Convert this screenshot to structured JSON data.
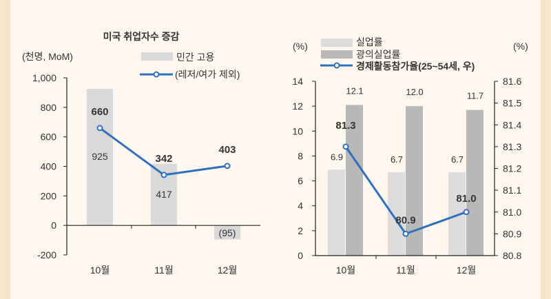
{
  "chart_data": [
    {
      "type": "bar+line",
      "title": "미국 취업자수 증감",
      "ylabel": "(천명, MoM)",
      "categories": [
        "10월",
        "11월",
        "12월"
      ],
      "ylim": [
        -200,
        1000
      ],
      "yticks": [
        -200,
        0,
        200,
        400,
        600,
        800,
        1000
      ],
      "ytick_labels": [
        "-200",
        "0",
        "200",
        "400",
        "600",
        "800",
        "1,000"
      ],
      "series": [
        {
          "name": "민간 고용",
          "kind": "bar",
          "color": "#d9d9d9",
          "values": [
            925,
            417,
            -95
          ],
          "labels": [
            "925",
            "417",
            "(95)"
          ]
        },
        {
          "name": "(레저/여가 제외)",
          "kind": "line",
          "color": "#2e6fbd",
          "values": [
            660,
            342,
            403
          ],
          "labels": [
            "660",
            "342",
            "403"
          ]
        }
      ],
      "legend": "top-right"
    },
    {
      "type": "bar+line",
      "ylabel_left": "(%)",
      "ylabel_right": "(%)",
      "categories": [
        "10월",
        "11월",
        "12월"
      ],
      "ylim": [
        0,
        14
      ],
      "yticks": [
        0,
        2,
        4,
        6,
        8,
        10,
        12,
        14
      ],
      "y2lim": [
        80.8,
        81.6
      ],
      "y2ticks": [
        "80.8",
        "80.9",
        "81.0",
        "81.1",
        "81.2",
        "81.3",
        "81.4",
        "81.5",
        "81.6"
      ],
      "series": [
        {
          "name": "실업률",
          "kind": "bar",
          "color": "#dcdcdc",
          "values": [
            6.9,
            6.7,
            6.7
          ],
          "labels": [
            "6.9",
            "6.7",
            "6.7"
          ]
        },
        {
          "name": "광의실업률",
          "kind": "bar",
          "color": "#b8b8b8",
          "values": [
            12.1,
            12.0,
            11.7
          ],
          "labels": [
            "12.1",
            "12.0",
            "11.7"
          ]
        },
        {
          "name": "경제활동참가율(25~54세, 우)",
          "kind": "line",
          "axis": "right",
          "color": "#2e6fbd",
          "values": [
            81.3,
            80.9,
            81.0
          ],
          "labels": [
            "81.3",
            "80.9",
            "81.0"
          ]
        }
      ],
      "legend": "top-left"
    }
  ]
}
